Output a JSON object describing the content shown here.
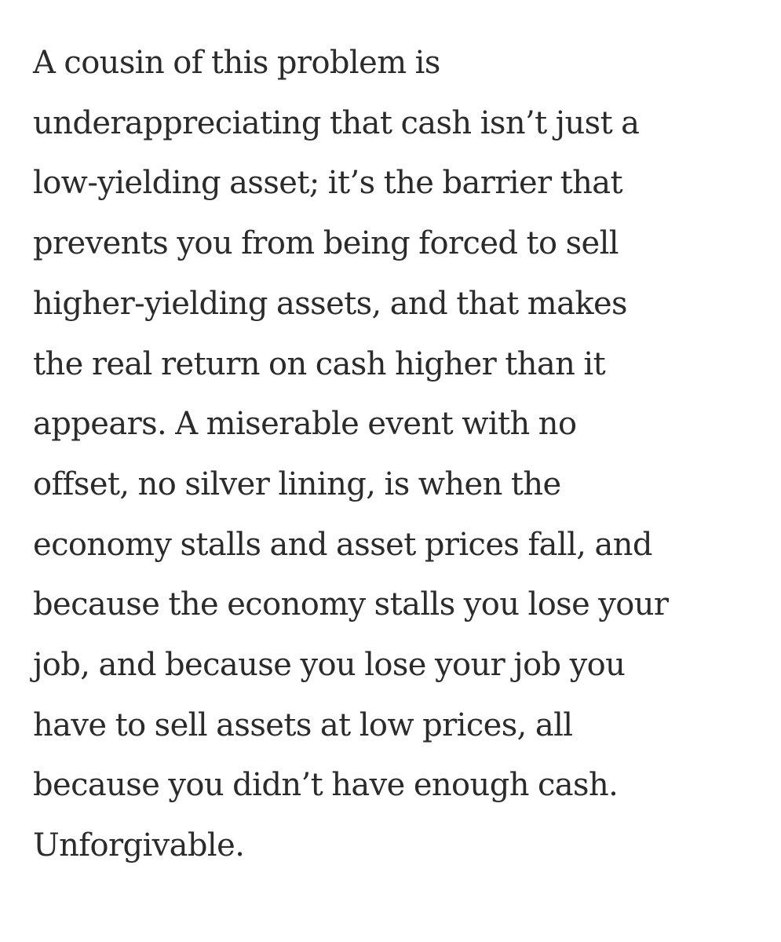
{
  "article": {
    "paragraph_lines": [
      "A cousin of this problem is",
      "underappreciating that cash isn’t just a",
      "low-yielding asset; it’s the barrier that",
      "prevents you from being forced to sell",
      "higher-yielding assets, and that makes",
      "the real return on cash higher than it",
      "appears. A miserable event with no",
      "offset, no silver lining, is when the",
      "economy stalls and asset prices fall, and",
      "because the economy stalls you lose your",
      "job, and because you lose your job you",
      "have to sell assets at low prices, all",
      "because you didn’t have enough cash.",
      "Unforgivable."
    ]
  }
}
